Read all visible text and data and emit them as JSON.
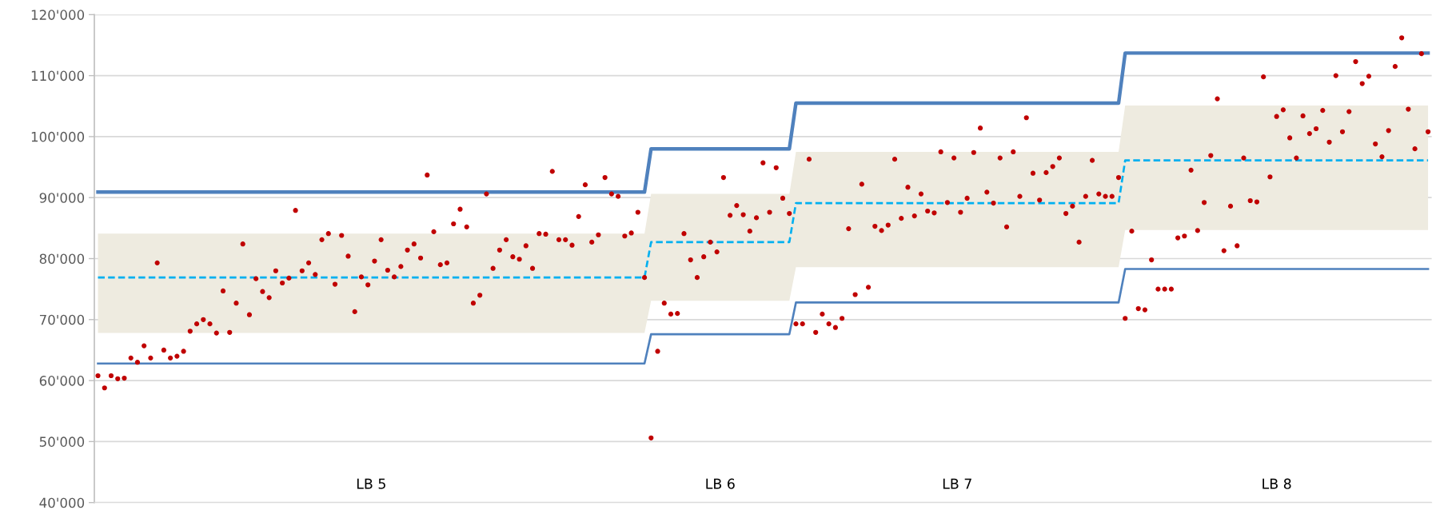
{
  "chart_data": {
    "type": "scatter",
    "categories": [
      null,
      null,
      null,
      null,
      null,
      null,
      null,
      null,
      null,
      null,
      null,
      null,
      null,
      null,
      null,
      null,
      null,
      null,
      null,
      null,
      null,
      null,
      null,
      null,
      null,
      null,
      null,
      null,
      null,
      null,
      null,
      null,
      null,
      null,
      null,
      null,
      null,
      null,
      null,
      null,
      null,
      null,
      null,
      null,
      null,
      null,
      null,
      null,
      null,
      null,
      null,
      null,
      null,
      null,
      null,
      null,
      null,
      null,
      null,
      null,
      null,
      null,
      null,
      null,
      null,
      null,
      null,
      null,
      null,
      null,
      null,
      null,
      null,
      null,
      null,
      null,
      null,
      null,
      null,
      null,
      null,
      null,
      null,
      null,
      null,
      null,
      null,
      null,
      null,
      null,
      null,
      null,
      null,
      null,
      null,
      null,
      null,
      null,
      null,
      null,
      null,
      null,
      null,
      null,
      null,
      null,
      null,
      null,
      null,
      null,
      null,
      null,
      null,
      null,
      null,
      null,
      null,
      null,
      null,
      null,
      null,
      null,
      null,
      null,
      null,
      null,
      null,
      null,
      null,
      null,
      null,
      null,
      null,
      null,
      null,
      null,
      null,
      null,
      null,
      null,
      null,
      null,
      null,
      null,
      null,
      null,
      null,
      null,
      null,
      null,
      null,
      null,
      null,
      null,
      null,
      null,
      null,
      null,
      null,
      null,
      null,
      null,
      null,
      null,
      null,
      null,
      null,
      null,
      null,
      null,
      null,
      null,
      null,
      null,
      null,
      null,
      null,
      null,
      null,
      null,
      null,
      null,
      null,
      null,
      null,
      null,
      null,
      null,
      null,
      null,
      null,
      null,
      null,
      null,
      null,
      null,
      null,
      null,
      null,
      null,
      null,
      null,
      null
    ],
    "series": [
      {
        "type": "line",
        "color": "#00b0f0",
        "line_style": "dashed",
        "marker": "none",
        "values": [
          76900,
          76900,
          76900,
          76900,
          76900,
          76900,
          76900,
          76900,
          76900,
          76900,
          76900,
          76900,
          76900,
          76900,
          76900,
          76900,
          76900,
          76900,
          76900,
          76900,
          76900,
          76900,
          76900,
          76900,
          76900,
          76900,
          76900,
          76900,
          76900,
          76900,
          76900,
          76900,
          76900,
          76900,
          76900,
          76900,
          76900,
          76900,
          76900,
          76900,
          76900,
          76900,
          76900,
          76900,
          76900,
          76900,
          76900,
          76900,
          76900,
          76900,
          76900,
          76900,
          76900,
          76900,
          76900,
          76900,
          76900,
          76900,
          76900,
          76900,
          76900,
          76900,
          76900,
          76900,
          76900,
          76900,
          76900,
          76900,
          76900,
          76900,
          76900,
          76900,
          76900,
          76900,
          76900,
          76900,
          76900,
          76900,
          76900,
          76900,
          76900,
          76900,
          76900,
          76900,
          82700,
          82700,
          82700,
          82700,
          82700,
          82700,
          82700,
          82700,
          82700,
          82700,
          82700,
          82700,
          82700,
          82700,
          82700,
          82700,
          82700,
          82700,
          82700,
          82700,
          82700,
          82700,
          89100,
          89100,
          89100,
          89100,
          89100,
          89100,
          89100,
          89100,
          89100,
          89100,
          89100,
          89100,
          89100,
          89100,
          89100,
          89100,
          89100,
          89100,
          89100,
          89100,
          89100,
          89100,
          89100,
          89100,
          89100,
          89100,
          89100,
          89100,
          89100,
          89100,
          89100,
          89100,
          89100,
          89100,
          89100,
          89100,
          89100,
          89100,
          89100,
          89100,
          89100,
          89100,
          89100,
          89100,
          89100,
          89100,
          89100,
          89100,
          89100,
          89100,
          96100,
          96100,
          96100,
          96100,
          96100,
          96100,
          96100,
          96100,
          96100,
          96100,
          96100,
          96100,
          96100,
          96100,
          96100,
          96100,
          96100,
          96100,
          96100,
          96100,
          96100,
          96100,
          96100,
          96100,
          96100,
          96100,
          96100,
          96100,
          96100,
          96100,
          96100,
          96100,
          96100,
          96100,
          96100,
          96100,
          96100,
          96100,
          96100,
          96100,
          96100,
          96100,
          96100,
          96100,
          96100,
          96100,
          96100
        ],
        "lower": [
          67800,
          67800,
          67800,
          67800,
          67800,
          67800,
          67800,
          67800,
          67800,
          67800,
          67800,
          67800,
          67800,
          67800,
          67800,
          67800,
          67800,
          67800,
          67800,
          67800,
          67800,
          67800,
          67800,
          67800,
          67800,
          67800,
          67800,
          67800,
          67800,
          67800,
          67800,
          67800,
          67800,
          67800,
          67800,
          67800,
          67800,
          67800,
          67800,
          67800,
          67800,
          67800,
          67800,
          67800,
          67800,
          67800,
          67800,
          67800,
          67800,
          67800,
          67800,
          67800,
          67800,
          67800,
          67800,
          67800,
          67800,
          67800,
          67800,
          67800,
          67800,
          67800,
          67800,
          67800,
          67800,
          67800,
          67800,
          67800,
          67800,
          67800,
          67800,
          67800,
          67800,
          67800,
          67800,
          67800,
          67800,
          67800,
          67800,
          67800,
          67800,
          67800,
          67800,
          67800,
          73100,
          73100,
          73100,
          73100,
          73100,
          73100,
          73100,
          73100,
          73100,
          73100,
          73100,
          73100,
          73100,
          73100,
          73100,
          73100,
          73100,
          73100,
          73100,
          73100,
          73100,
          73100,
          78600,
          78600,
          78600,
          78600,
          78600,
          78600,
          78600,
          78600,
          78600,
          78600,
          78600,
          78600,
          78600,
          78600,
          78600,
          78600,
          78600,
          78600,
          78600,
          78600,
          78600,
          78600,
          78600,
          78600,
          78600,
          78600,
          78600,
          78600,
          78600,
          78600,
          78600,
          78600,
          78600,
          78600,
          78600,
          78600,
          78600,
          78600,
          78600,
          78600,
          78600,
          78600,
          78600,
          78600,
          78600,
          78600,
          78600,
          78600,
          78600,
          78600,
          84700,
          84700,
          84700,
          84700,
          84700,
          84700,
          84700,
          84700,
          84700,
          84700,
          84700,
          84700,
          84700,
          84700,
          84700,
          84700,
          84700,
          84700,
          84700,
          84700,
          84700,
          84700,
          84700,
          84700,
          84700,
          84700,
          84700,
          84700,
          84700,
          84700,
          84700,
          84700,
          84700,
          84700,
          84700,
          84700,
          84700,
          84700,
          84700,
          84700,
          84700,
          84700,
          84700,
          84700,
          84700,
          84700,
          84700
        ],
        "upper": [
          84100,
          84100,
          84100,
          84100,
          84100,
          84100,
          84100,
          84100,
          84100,
          84100,
          84100,
          84100,
          84100,
          84100,
          84100,
          84100,
          84100,
          84100,
          84100,
          84100,
          84100,
          84100,
          84100,
          84100,
          84100,
          84100,
          84100,
          84100,
          84100,
          84100,
          84100,
          84100,
          84100,
          84100,
          84100,
          84100,
          84100,
          84100,
          84100,
          84100,
          84100,
          84100,
          84100,
          84100,
          84100,
          84100,
          84100,
          84100,
          84100,
          84100,
          84100,
          84100,
          84100,
          84100,
          84100,
          84100,
          84100,
          84100,
          84100,
          84100,
          84100,
          84100,
          84100,
          84100,
          84100,
          84100,
          84100,
          84100,
          84100,
          84100,
          84100,
          84100,
          84100,
          84100,
          84100,
          84100,
          84100,
          84100,
          84100,
          84100,
          84100,
          84100,
          84100,
          84100,
          90600,
          90600,
          90600,
          90600,
          90600,
          90600,
          90600,
          90600,
          90600,
          90600,
          90600,
          90600,
          90600,
          90600,
          90600,
          90600,
          90600,
          90600,
          90600,
          90600,
          90600,
          90600,
          97500,
          97500,
          97500,
          97500,
          97500,
          97500,
          97500,
          97500,
          97500,
          97500,
          97500,
          97500,
          97500,
          97500,
          97500,
          97500,
          97500,
          97500,
          97500,
          97500,
          97500,
          97500,
          97500,
          97500,
          97500,
          97500,
          97500,
          97500,
          97500,
          97500,
          97500,
          97500,
          97500,
          97500,
          97500,
          97500,
          97500,
          97500,
          97500,
          97500,
          97500,
          97500,
          97500,
          97500,
          97500,
          97500,
          97500,
          97500,
          97500,
          97500,
          105100,
          105100,
          105100,
          105100,
          105100,
          105100,
          105100,
          105100,
          105100,
          105100,
          105100,
          105100,
          105100,
          105100,
          105100,
          105100,
          105100,
          105100,
          105100,
          105100,
          105100,
          105100,
          105100,
          105100,
          105100,
          105100,
          105100,
          105100,
          105100,
          105100,
          105100,
          105100,
          105100,
          105100,
          105100,
          105100,
          105100,
          105100,
          105100,
          105100,
          105100,
          105100,
          105100,
          105100,
          105100,
          105100,
          105100
        ]
      },
      {
        "type": "line",
        "color": "#4f81bd",
        "line_style": "solid",
        "marker": "none",
        "values": [
          90900,
          90900,
          90900,
          90900,
          90900,
          90900,
          90900,
          90900,
          90900,
          90900,
          90900,
          90900,
          90900,
          90900,
          90900,
          90900,
          90900,
          90900,
          90900,
          90900,
          90900,
          90900,
          90900,
          90900,
          90900,
          90900,
          90900,
          90900,
          90900,
          90900,
          90900,
          90900,
          90900,
          90900,
          90900,
          90900,
          90900,
          90900,
          90900,
          90900,
          90900,
          90900,
          90900,
          90900,
          90900,
          90900,
          90900,
          90900,
          90900,
          90900,
          90900,
          90900,
          90900,
          90900,
          90900,
          90900,
          90900,
          90900,
          90900,
          90900,
          90900,
          90900,
          90900,
          90900,
          90900,
          90900,
          90900,
          90900,
          90900,
          90900,
          90900,
          90900,
          90900,
          90900,
          90900,
          90900,
          90900,
          90900,
          90900,
          90900,
          90900,
          90900,
          90900,
          90900,
          98000,
          98000,
          98000,
          98000,
          98000,
          98000,
          98000,
          98000,
          98000,
          98000,
          98000,
          98000,
          98000,
          98000,
          98000,
          98000,
          98000,
          98000,
          98000,
          98000,
          98000,
          98000,
          105500,
          105500,
          105500,
          105500,
          105500,
          105500,
          105500,
          105500,
          105500,
          105500,
          105500,
          105500,
          105500,
          105500,
          105500,
          105500,
          105500,
          105500,
          105500,
          105500,
          105500,
          105500,
          105500,
          105500,
          105500,
          105500,
          105500,
          105500,
          105500,
          105500,
          105500,
          105500,
          105500,
          105500,
          105500,
          105500,
          105500,
          105500,
          105500,
          105500,
          105500,
          105500,
          105500,
          105500,
          105500,
          105500,
          105500,
          105500,
          105500,
          105500,
          113700,
          113700,
          113700,
          113700,
          113700,
          113700,
          113700,
          113700,
          113700,
          113700,
          113700,
          113700,
          113700,
          113700,
          113700,
          113700,
          113700,
          113700,
          113700,
          113700,
          113700,
          113700,
          113700,
          113700,
          113700,
          113700,
          113700,
          113700,
          113700,
          113700,
          113700,
          113700,
          113700,
          113700,
          113700,
          113700,
          113700,
          113700,
          113700,
          113700,
          113700,
          113700,
          113700,
          113700,
          113700,
          113700,
          113700
        ]
      },
      {
        "type": "line",
        "color": "#4f81bd",
        "line_style": "solid",
        "marker": "none",
        "values": [
          62800,
          62800,
          62800,
          62800,
          62800,
          62800,
          62800,
          62800,
          62800,
          62800,
          62800,
          62800,
          62800,
          62800,
          62800,
          62800,
          62800,
          62800,
          62800,
          62800,
          62800,
          62800,
          62800,
          62800,
          62800,
          62800,
          62800,
          62800,
          62800,
          62800,
          62800,
          62800,
          62800,
          62800,
          62800,
          62800,
          62800,
          62800,
          62800,
          62800,
          62800,
          62800,
          62800,
          62800,
          62800,
          62800,
          62800,
          62800,
          62800,
          62800,
          62800,
          62800,
          62800,
          62800,
          62800,
          62800,
          62800,
          62800,
          62800,
          62800,
          62800,
          62800,
          62800,
          62800,
          62800,
          62800,
          62800,
          62800,
          62800,
          62800,
          62800,
          62800,
          62800,
          62800,
          62800,
          62800,
          62800,
          62800,
          62800,
          62800,
          62800,
          62800,
          62800,
          62800,
          67600,
          67600,
          67600,
          67600,
          67600,
          67600,
          67600,
          67600,
          67600,
          67600,
          67600,
          67600,
          67600,
          67600,
          67600,
          67600,
          67600,
          67600,
          67600,
          67600,
          67600,
          67600,
          72800,
          72800,
          72800,
          72800,
          72800,
          72800,
          72800,
          72800,
          72800,
          72800,
          72800,
          72800,
          72800,
          72800,
          72800,
          72800,
          72800,
          72800,
          72800,
          72800,
          72800,
          72800,
          72800,
          72800,
          72800,
          72800,
          72800,
          72800,
          72800,
          72800,
          72800,
          72800,
          72800,
          72800,
          72800,
          72800,
          72800,
          72800,
          72800,
          72800,
          72800,
          72800,
          72800,
          72800,
          72800,
          72800,
          72800,
          72800,
          72800,
          72800,
          78300,
          78300,
          78300,
          78300,
          78300,
          78300,
          78300,
          78300,
          78300,
          78300,
          78300,
          78300,
          78300,
          78300,
          78300,
          78300,
          78300,
          78300,
          78300,
          78300,
          78300,
          78300,
          78300,
          78300,
          78300,
          78300,
          78300,
          78300,
          78300,
          78300,
          78300,
          78300,
          78300,
          78300,
          78300,
          78300,
          78300,
          78300,
          78300,
          78300,
          78300,
          78300,
          78300,
          78300,
          78300,
          78300,
          78300
        ]
      },
      {
        "color": "#c00000",
        "marker": "circle",
        "values": [
          60800,
          58800,
          60800,
          60300,
          60400,
          63700,
          63000,
          65700,
          63700,
          79300,
          65000,
          63700,
          64000,
          64800,
          68100,
          69300,
          70000,
          69300,
          67800,
          74700,
          67900,
          72700,
          82400,
          70800,
          76700,
          74600,
          73600,
          78000,
          76000,
          76800,
          87900,
          78000,
          79300,
          77400,
          83100,
          84100,
          75800,
          83800,
          80400,
          71300,
          77000,
          75700,
          79600,
          83100,
          78100,
          77000,
          78700,
          81400,
          82400,
          80100,
          93700,
          84400,
          79000,
          79300,
          85700,
          88100,
          85200,
          72700,
          74000,
          90600,
          78400,
          81400,
          83100,
          80300,
          79900,
          82100,
          78400,
          84100,
          84000,
          94300,
          83100,
          83100,
          82200,
          86900,
          92100,
          82700,
          83900,
          93300,
          90600,
          90200,
          83700,
          84200,
          87600,
          76900,
          50600,
          64800,
          72700,
          70900,
          71000,
          84100,
          79800,
          76900,
          80300,
          82700,
          81100,
          93300,
          87100,
          88700,
          87200,
          84500,
          86700,
          95700,
          87600,
          94900,
          89900,
          87400,
          69300,
          69300,
          96300,
          67900,
          70900,
          69300,
          68700,
          70200,
          84900,
          74100,
          92200,
          75300,
          85300,
          84600,
          85500,
          96300,
          86600,
          91700,
          87000,
          90600,
          87800,
          87500,
          97500,
          89200,
          96500,
          87600,
          89900,
          97400,
          101400,
          90900,
          89100,
          96500,
          85200,
          97500,
          90200,
          103100,
          94000,
          89600,
          94100,
          95100,
          96500,
          87400,
          88600,
          82700,
          90200,
          96100,
          90600,
          90200,
          90200,
          93300,
          70200,
          84500,
          71800,
          71600,
          79800,
          75000,
          75000,
          75000,
          83400,
          83700,
          94500,
          84600,
          89200,
          96900,
          106200,
          81300,
          88600,
          82100,
          96500,
          89500,
          89300,
          109800,
          93400,
          103300,
          104400,
          99800,
          96500,
          103400,
          100500,
          101300,
          104300,
          99100,
          110000,
          100800,
          104100,
          112300,
          108700,
          109900,
          98800,
          96700,
          101000,
          111500,
          116200,
          104500,
          98000,
          113600,
          100800
        ]
      }
    ],
    "ylim": [
      40000,
      120000
    ],
    "yticks": [
      {
        "value": 40000,
        "label": "40'000"
      },
      {
        "value": 50000,
        "label": "50'000"
      },
      {
        "value": 60000,
        "label": "60'000"
      },
      {
        "value": 70000,
        "label": "70'000"
      },
      {
        "value": 80000,
        "label": "80'000"
      },
      {
        "value": 90000,
        "label": "90'000"
      },
      {
        "value": 100000,
        "label": "100'000"
      },
      {
        "value": 110000,
        "label": "110'000"
      },
      {
        "value": 120000,
        "label": "120'000"
      }
    ],
    "grid": "y",
    "tick_labels": "y",
    "annotations": [
      "LB 5",
      "LB 6",
      "LB 7",
      "LB 8"
    ]
  }
}
